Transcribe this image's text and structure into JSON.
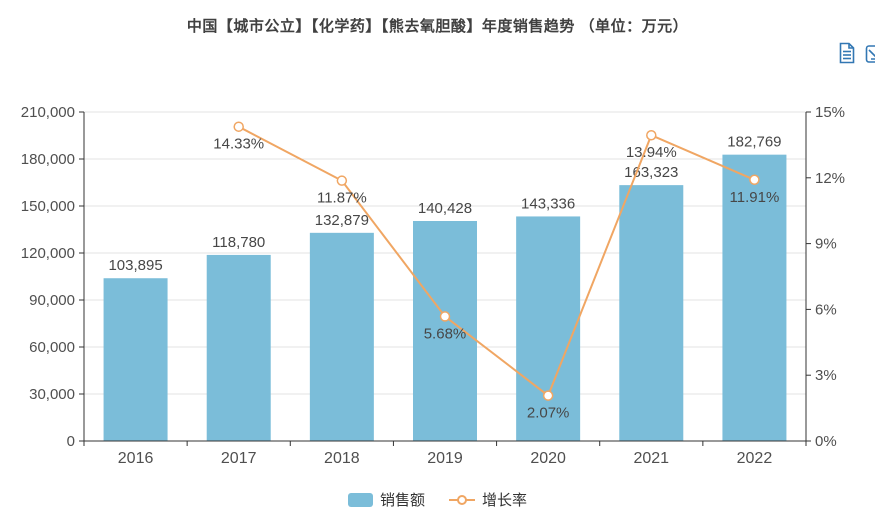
{
  "header": {
    "title": "中国【城市公立】【化学药】【熊去氧胆酸】年度销售趋势 （单位：万元）"
  },
  "toolbox": {
    "color": "#3277b3",
    "icons": [
      {
        "name": "data-view-icon"
      },
      {
        "name": "save-image-icon"
      }
    ]
  },
  "legend": {
    "position": "bottom",
    "items": [
      {
        "label": "销售额",
        "type": "bar",
        "color": "#7bbdd9"
      },
      {
        "label": "增长率",
        "type": "line",
        "color": "#f0a663"
      }
    ]
  },
  "chart_data": {
    "type": "bar",
    "title": "中国【城市公立】【化学药】【熊去氧胆酸】年度销售趋势 （单位：万元）",
    "unit": "万元",
    "categories": [
      "2016",
      "2017",
      "2018",
      "2019",
      "2020",
      "2021",
      "2022"
    ],
    "series": [
      {
        "name": "销售额",
        "type": "bar",
        "axis": "left",
        "color": "#7bbdd9",
        "values": [
          103895,
          118780,
          132879,
          140428,
          143336,
          163323,
          182769
        ],
        "labels": [
          "103,895",
          "118,780",
          "132,879",
          "140,428",
          "143,336",
          "163,323",
          "182,769"
        ]
      },
      {
        "name": "增长率",
        "type": "line",
        "axis": "right",
        "color": "#f0a663",
        "values": [
          null,
          14.33,
          11.87,
          5.68,
          2.07,
          13.94,
          11.91
        ],
        "labels": [
          null,
          "14.33%",
          "11.87%",
          "5.68%",
          "2.07%",
          "13.94%",
          "11.91%"
        ]
      }
    ],
    "y_axis_left": {
      "min": 0,
      "max": 210000,
      "interval": 30000,
      "tick_labels": [
        "0",
        "30,000",
        "60,000",
        "90,000",
        "120,000",
        "150,000",
        "180,000",
        "210,000"
      ]
    },
    "y_axis_right": {
      "min": 0,
      "max": 15,
      "interval": 3,
      "tick_labels": [
        "0%",
        "3%",
        "6%",
        "9%",
        "12%",
        "15%"
      ]
    },
    "grid": true,
    "legend_position": "bottom"
  },
  "style": {
    "axis_line": "#333333",
    "grid_line": "#e3e3e3",
    "tick_label": "#4f4f4f",
    "data_label": "#474747"
  }
}
